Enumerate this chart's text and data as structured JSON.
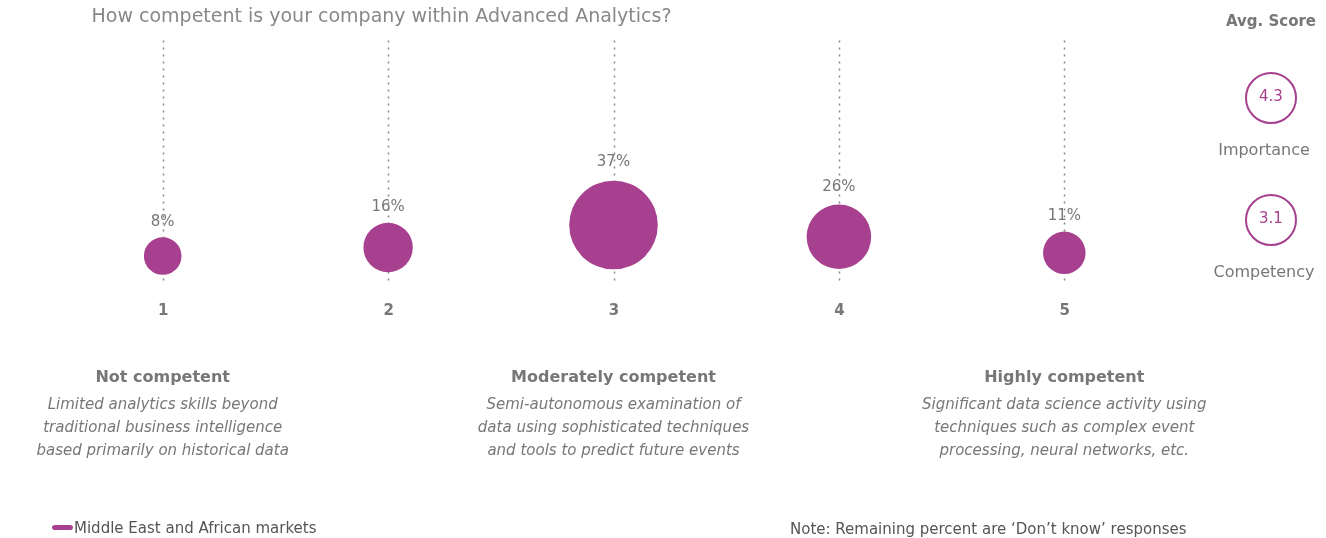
{
  "chart_data": {
    "type": "bubble",
    "title": "How competent is your company within Advanced Analytics?",
    "categories": [
      "1",
      "2",
      "3",
      "4",
      "5"
    ],
    "series": [
      {
        "name": "Middle East and African markets",
        "color": "#a6408f",
        "values": [
          8,
          16,
          37,
          26,
          11
        ],
        "sizes": [
          0.18,
          0.31,
          1,
          0.53,
          0.23
        ],
        "value_labels": [
          "8%",
          "16%",
          "37%",
          "26%",
          "11%"
        ]
      }
    ],
    "grid": "x",
    "legend": "bottom left",
    "annotations": [
      "Not competent",
      "Limited analytics skills beyond\ntraditional business intelligence\nbased primarily on historical data",
      "Moderately competent",
      "Semi-autonomous examination of\ndata using sophisticated techniques\nand tools to predict future events",
      "Highly competent",
      "Significant data science activity using\ntechniques such as complex event\nprocessing, neural networks, etc.",
      "Avg. Score",
      "4.3",
      "Importance",
      "3.1",
      "Competency",
      "Note: Remaining percent are ‘Don’t know’ responses"
    ]
  }
}
